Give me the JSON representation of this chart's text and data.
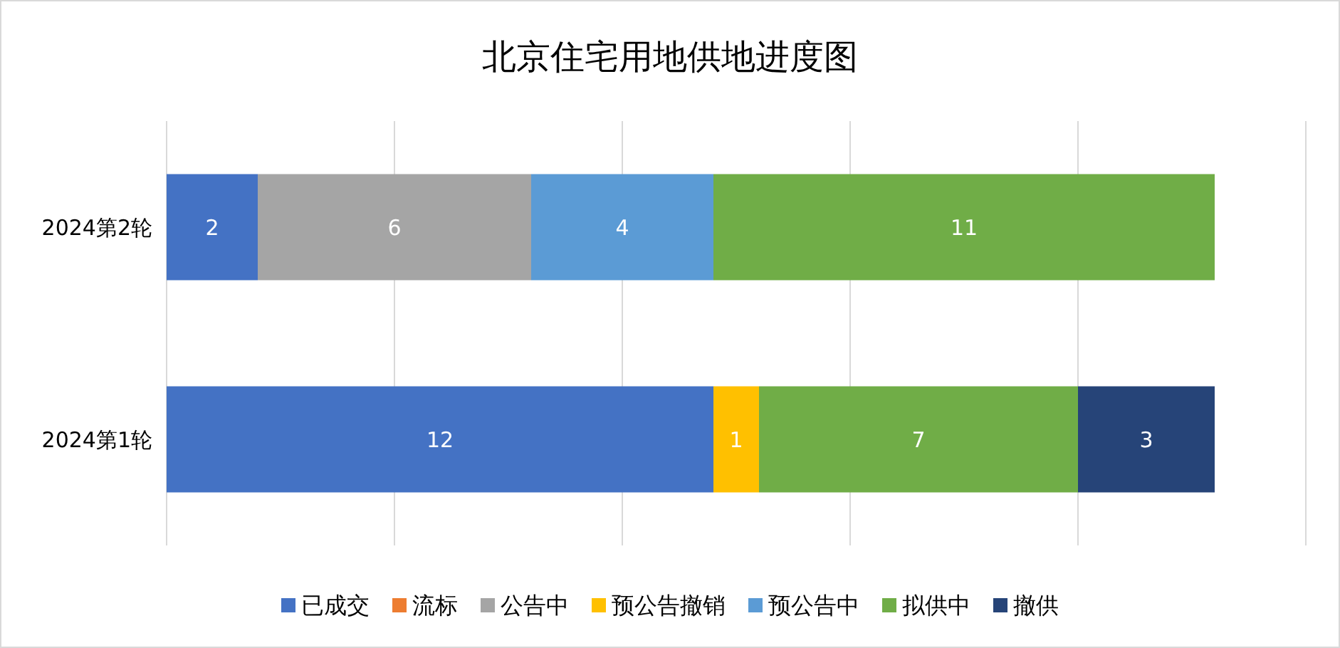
{
  "chart_data": {
    "type": "bar",
    "orientation": "horizontal",
    "stacked": true,
    "title": "北京住宅用地供地进度图",
    "categories": [
      "2024第2轮",
      "2024第1轮"
    ],
    "series": [
      {
        "name": "已成交",
        "color": "#4472c4",
        "values": [
          2,
          12
        ]
      },
      {
        "name": "流标",
        "color": "#ed7d31",
        "values": [
          null,
          null
        ]
      },
      {
        "name": "公告中",
        "color": "#a5a5a5",
        "values": [
          6,
          null
        ]
      },
      {
        "name": "预公告撤销",
        "color": "#ffc000",
        "values": [
          null,
          1
        ]
      },
      {
        "name": "预公告中",
        "color": "#5b9bd5",
        "values": [
          4,
          null
        ]
      },
      {
        "name": "拟供中",
        "color": "#70ad47",
        "values": [
          11,
          7
        ]
      },
      {
        "name": "撤供",
        "color": "#264478",
        "values": [
          null,
          3
        ]
      }
    ],
    "xlim": [
      0,
      25
    ],
    "xticks": [
      {
        "value": 0,
        "label": null
      },
      {
        "value": 5,
        "label": null
      },
      {
        "value": 10,
        "label": null
      },
      {
        "value": 15,
        "label": null
      },
      {
        "value": 20,
        "label": null
      },
      {
        "value": 25,
        "label": null
      }
    ],
    "tick_labels": "y",
    "grid": "x",
    "legend": "bottom",
    "data_labels": true
  }
}
